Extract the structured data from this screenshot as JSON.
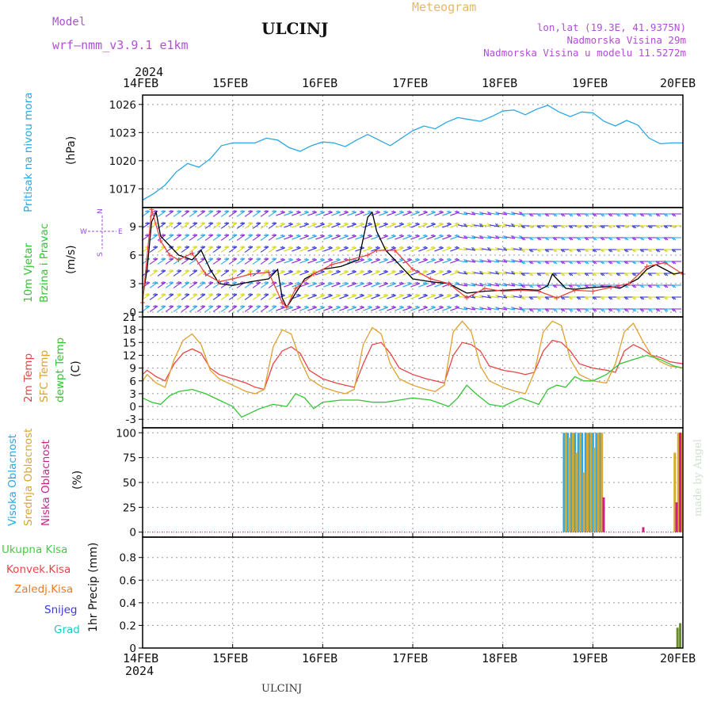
{
  "header": {
    "model_label": "Model",
    "model_name": "wrf—nmm_v3.9.1  e1km",
    "title": "ULCINJ",
    "meteogram": "Meteogram",
    "lonlat": "lon,lat (19.3E, 41.9375N)",
    "elevation": "Nadmorska Visina 29m",
    "model_elevation": "Nadmorska Visina u modelu 11.5272m"
  },
  "footer": {
    "station": "ULCINJ",
    "credit": "made by Angel"
  },
  "colors": {
    "pressure": "#29a7e6",
    "wind_barbs": "mixed rainbow",
    "t2m": "#e84545",
    "sfc_temp": "#e0a030",
    "dewpoint": "#33c433",
    "high_cloud": "#29a7e6",
    "mid_cloud": "#d8a830",
    "low_cloud": "#cc2288",
    "precip_total": "#44cc44",
    "conv_precip": "#e84545",
    "frozen": "#f07a20",
    "snow": "#3a3ad8",
    "hail": "#22c8c8"
  },
  "chart_data": [
    {
      "type": "line",
      "panel": "pressure",
      "title": "",
      "xlabel": "",
      "x_ticks": [
        "14FEB",
        "15FEB",
        "16FEB",
        "17FEB",
        "18FEB",
        "19FEB",
        "20FEB"
      ],
      "x_year": "2024",
      "ylabel": "Pritisak na nivou mora",
      "yunit": "(hPa)",
      "ylim": [
        1015,
        1027
      ],
      "yticks": [
        1017,
        1020,
        1023,
        1026
      ],
      "grid": true,
      "series": [
        {
          "name": "Pritisak na nivou mora",
          "color": "#29a7e6",
          "x": [
            0,
            0.125,
            0.25,
            0.375,
            0.5,
            0.625,
            0.75,
            0.875,
            1.0,
            1.125,
            1.25,
            1.375,
            1.5,
            1.625,
            1.75,
            1.875,
            2.0,
            2.125,
            2.25,
            2.375,
            2.5,
            2.625,
            2.75,
            2.875,
            3.0,
            3.125,
            3.25,
            3.375,
            3.5,
            3.625,
            3.75,
            3.875,
            4.0,
            4.125,
            4.25,
            4.375,
            4.5,
            4.625,
            4.75,
            4.875,
            5.0,
            5.125,
            5.25,
            5.375,
            5.5,
            5.625,
            5.75,
            5.875,
            6.0
          ],
          "values": [
            1015.8,
            1016.5,
            1017.4,
            1018.8,
            1019.7,
            1019.3,
            1020.2,
            1021.6,
            1021.9,
            1021.9,
            1021.9,
            1022.4,
            1022.2,
            1021.4,
            1021.0,
            1021.6,
            1022.0,
            1021.9,
            1021.5,
            1022.2,
            1022.8,
            1022.2,
            1021.6,
            1022.4,
            1023.2,
            1023.7,
            1023.4,
            1024.1,
            1024.6,
            1024.4,
            1024.2,
            1024.7,
            1025.3,
            1025.4,
            1024.9,
            1025.5,
            1025.9,
            1025.2,
            1024.7,
            1025.2,
            1025.1,
            1024.2,
            1023.7,
            1024.3,
            1023.8,
            1022.4,
            1021.8,
            1021.9,
            1021.9
          ]
        }
      ]
    },
    {
      "type": "line",
      "panel": "wind",
      "title": "",
      "ylabel": "10m Vjetar Brzina i Pravac",
      "yunit": "(m/s)",
      "ylim": [
        -0.5,
        11
      ],
      "yticks": [
        0,
        3,
        6,
        9
      ],
      "grid": true,
      "compass": {
        "n": "N",
        "w": "W",
        "e": "E",
        "s": "S"
      },
      "series": [
        {
          "name": "speed",
          "color": "#000000",
          "x": [
            0,
            0.05,
            0.1,
            0.15,
            0.2,
            0.3,
            0.4,
            0.55,
            0.65,
            0.75,
            0.85,
            1.0,
            1.2,
            1.4,
            1.5,
            1.55,
            1.6,
            1.7,
            1.8,
            1.9,
            2.0,
            2.2,
            2.4,
            2.5,
            2.55,
            2.6,
            2.7,
            2.85,
            3.0,
            3.2,
            3.4,
            3.5,
            3.6,
            3.8,
            4.0,
            4.2,
            4.4,
            4.5,
            4.55,
            4.6,
            4.7,
            4.8,
            4.9,
            5.0,
            5.2,
            5.3,
            5.5,
            5.6,
            5.7,
            5.8,
            5.9,
            6.0
          ],
          "values": [
            1.5,
            4.5,
            9.5,
            10.5,
            8.0,
            7.0,
            6.0,
            5.5,
            6.5,
            4.5,
            3.0,
            2.8,
            3.2,
            3.5,
            4.5,
            1.5,
            0.5,
            2.0,
            3.5,
            4.0,
            4.5,
            4.8,
            5.5,
            10.0,
            10.5,
            8.5,
            6.5,
            5.0,
            3.5,
            3.2,
            3.0,
            2.5,
            2.0,
            2.2,
            2.3,
            2.4,
            2.3,
            2.8,
            4.0,
            3.5,
            2.5,
            2.4,
            2.5,
            2.6,
            2.7,
            2.5,
            3.5,
            4.5,
            5.0,
            4.5,
            4.0,
            4.2
          ]
        },
        {
          "name": "gust",
          "color": "#e84545",
          "x": [
            0,
            0.1,
            0.2,
            0.3,
            0.4,
            0.55,
            0.7,
            0.85,
            1.0,
            1.2,
            1.4,
            1.55,
            1.6,
            1.7,
            1.9,
            2.1,
            2.3,
            2.5,
            2.6,
            2.8,
            3.0,
            3.2,
            3.4,
            3.6,
            3.8,
            4.0,
            4.2,
            4.4,
            4.6,
            4.8,
            5.0,
            5.2,
            5.4,
            5.6,
            5.8,
            6.0
          ],
          "values": [
            1.0,
            10.8,
            7.5,
            6.0,
            5.5,
            6.2,
            4.0,
            3.2,
            3.5,
            4.0,
            4.2,
            1.0,
            0.5,
            2.5,
            4.0,
            5.0,
            5.5,
            6.0,
            6.5,
            6.5,
            4.5,
            3.5,
            3.0,
            1.5,
            2.5,
            2.2,
            2.3,
            2.2,
            1.5,
            2.3,
            2.2,
            2.6,
            3.0,
            4.8,
            5.2,
            4.0
          ]
        }
      ]
    },
    {
      "type": "line",
      "panel": "temperature",
      "title": "",
      "ylabel": "2m Temp / SFC Temp / dewpt Temp",
      "labels": [
        "2m Temp",
        "SFC Temp",
        "dewpt Temp"
      ],
      "yunit": "(C)",
      "ylim": [
        -5,
        21
      ],
      "yticks": [
        -3,
        0,
        3,
        6,
        9,
        12,
        15,
        18,
        21
      ],
      "grid": true,
      "series": [
        {
          "name": "2m Temp",
          "color": "#e84545",
          "x": [
            0,
            0.05,
            0.15,
            0.25,
            0.35,
            0.45,
            0.55,
            0.65,
            0.75,
            0.85,
            1.0,
            1.15,
            1.25,
            1.35,
            1.45,
            1.55,
            1.65,
            1.75,
            1.85,
            2.0,
            2.15,
            2.25,
            2.35,
            2.45,
            2.55,
            2.65,
            2.75,
            2.85,
            3.0,
            3.15,
            3.25,
            3.35,
            3.45,
            3.55,
            3.65,
            3.75,
            3.85,
            4.0,
            4.15,
            4.25,
            4.35,
            4.45,
            4.55,
            4.65,
            4.75,
            4.85,
            5.0,
            5.15,
            5.25,
            5.35,
            5.45,
            5.55,
            5.65,
            5.75,
            5.85,
            6.0
          ],
          "values": [
            7.5,
            8.5,
            7.0,
            6.0,
            10.0,
            12.5,
            13.5,
            12.5,
            9.0,
            7.5,
            6.5,
            5.5,
            4.5,
            4.0,
            10.0,
            13.0,
            14.0,
            12.5,
            8.5,
            6.5,
            5.5,
            5.0,
            4.5,
            10.0,
            14.5,
            15.0,
            12.5,
            9.0,
            7.5,
            6.5,
            6.0,
            5.5,
            12.0,
            15.0,
            14.5,
            13.0,
            9.5,
            8.5,
            8.0,
            7.5,
            8.0,
            13.0,
            15.5,
            15.0,
            13.0,
            10.0,
            9.0,
            8.5,
            8.0,
            13.0,
            14.5,
            13.5,
            12.0,
            11.5,
            10.5,
            10.0
          ]
        },
        {
          "name": "SFC Temp",
          "color": "#e0a030",
          "x": [
            0,
            0.05,
            0.15,
            0.25,
            0.35,
            0.45,
            0.55,
            0.65,
            0.75,
            0.85,
            1.0,
            1.15,
            1.25,
            1.35,
            1.45,
            1.55,
            1.65,
            1.75,
            1.85,
            2.0,
            2.15,
            2.25,
            2.35,
            2.45,
            2.55,
            2.65,
            2.75,
            2.85,
            3.0,
            3.15,
            3.25,
            3.35,
            3.45,
            3.55,
            3.65,
            3.75,
            3.85,
            4.0,
            4.15,
            4.25,
            4.35,
            4.45,
            4.55,
            4.65,
            4.75,
            4.85,
            5.0,
            5.15,
            5.25,
            5.35,
            5.45,
            5.55,
            5.65,
            5.75,
            5.85,
            6.0
          ],
          "values": [
            6.0,
            7.5,
            5.5,
            4.5,
            11.0,
            15.5,
            17.0,
            14.5,
            8.5,
            6.5,
            5.0,
            3.5,
            3.0,
            4.0,
            14.0,
            18.0,
            17.0,
            11.0,
            6.5,
            4.5,
            3.5,
            3.0,
            4.0,
            14.5,
            18.5,
            17.0,
            10.0,
            6.5,
            5.0,
            4.0,
            3.5,
            5.0,
            17.5,
            20.0,
            17.5,
            9.5,
            6.0,
            4.5,
            3.5,
            3.0,
            8.0,
            17.5,
            20.0,
            19.0,
            11.0,
            7.5,
            6.0,
            5.5,
            10.0,
            17.5,
            19.5,
            15.5,
            12.0,
            10.5,
            9.5,
            9.0
          ]
        },
        {
          "name": "dewpt Temp",
          "color": "#33c433",
          "x": [
            0,
            0.1,
            0.2,
            0.3,
            0.4,
            0.55,
            0.7,
            0.85,
            1.0,
            1.1,
            1.2,
            1.3,
            1.45,
            1.6,
            1.7,
            1.8,
            1.9,
            2.0,
            2.2,
            2.4,
            2.55,
            2.7,
            2.85,
            3.0,
            3.2,
            3.4,
            3.5,
            3.6,
            3.7,
            3.85,
            4.0,
            4.2,
            4.4,
            4.5,
            4.6,
            4.7,
            4.8,
            4.9,
            5.0,
            5.15,
            5.3,
            5.45,
            5.6,
            5.75,
            5.9,
            6.0
          ],
          "values": [
            2.0,
            1.0,
            0.5,
            2.5,
            3.5,
            4.0,
            3.0,
            1.5,
            0.0,
            -2.5,
            -1.5,
            -0.5,
            0.5,
            0.0,
            3.0,
            2.0,
            -0.5,
            1.0,
            1.5,
            1.5,
            1.0,
            1.0,
            1.5,
            2.0,
            1.5,
            0.0,
            2.0,
            5.0,
            3.0,
            0.5,
            0.0,
            2.0,
            0.5,
            4.0,
            5.0,
            4.5,
            7.0,
            6.0,
            6.0,
            7.5,
            10.0,
            11.0,
            12.0,
            11.0,
            9.5,
            9.0
          ]
        }
      ]
    },
    {
      "type": "bar",
      "panel": "cloud",
      "title": "",
      "ylabel": "Visoka Oblacnost / Srednja Oblacnost / Niska Oblacnost",
      "labels": [
        "Visoka Oblacnost",
        "Srednja Oblacnost",
        "Niska Oblacnost"
      ],
      "yunit": "(%)",
      "ylim": [
        -5,
        105
      ],
      "yticks": [
        0,
        25,
        50,
        75,
        100
      ],
      "grid": true,
      "series": [
        {
          "name": "Visoka Oblacnost",
          "color": "#29a7e6",
          "x": [
            4.68,
            4.72,
            4.76,
            4.8,
            4.84,
            4.88,
            4.92,
            4.96,
            5.0,
            5.04,
            5.08
          ],
          "values": [
            100,
            100,
            100,
            100,
            100,
            100,
            100,
            100,
            100,
            100,
            100
          ]
        },
        {
          "name": "Srednja Oblacnost",
          "color": "#d8a830",
          "x": [
            4.7,
            4.74,
            4.78,
            4.82,
            4.86,
            4.9,
            4.94,
            4.98,
            5.02,
            5.06,
            5.1,
            5.91,
            5.95,
            5.98
          ],
          "values": [
            100,
            95,
            100,
            80,
            100,
            60,
            100,
            100,
            85,
            100,
            100,
            80,
            100,
            100
          ]
        },
        {
          "name": "Niska Oblacnost",
          "color": "#cc2288",
          "x": [
            5.12,
            5.56,
            5.93,
            5.97
          ],
          "values": [
            35,
            5,
            30,
            100
          ]
        }
      ]
    },
    {
      "type": "bar",
      "panel": "precip",
      "title": "",
      "ylabel": "1hr Precip (mm)",
      "ylim": [
        0,
        0.98
      ],
      "yticks": [
        0.0,
        0.2,
        0.4,
        0.6,
        0.8
      ],
      "grid": true,
      "legend": [
        "Ukupna Kisa",
        "Konvek.Kisa",
        "Zaledj.Kisa",
        "Snijeg",
        "Grad"
      ],
      "series": [
        {
          "name": "Ukupna Kisa",
          "color": "#6b8e23",
          "x": [
            5.94,
            5.97
          ],
          "values": [
            0.18,
            0.22
          ]
        }
      ]
    }
  ]
}
